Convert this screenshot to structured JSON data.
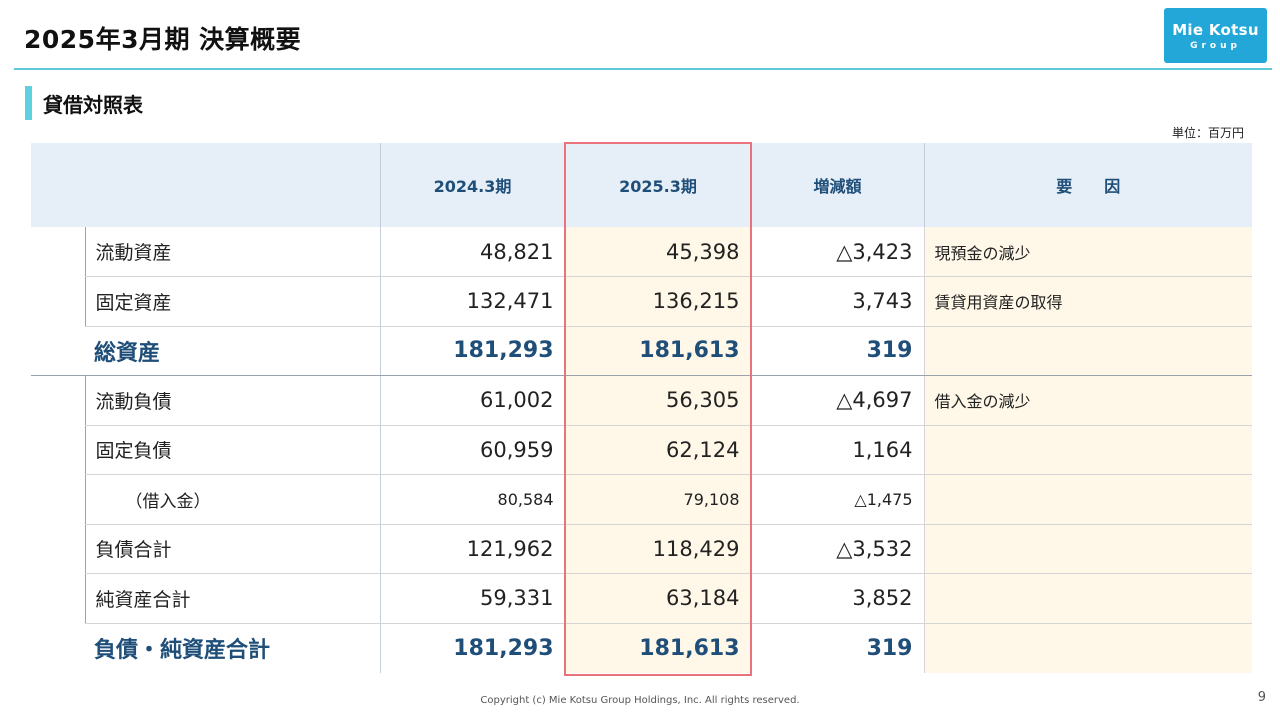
{
  "header": {
    "title": "2025年3月期 決算概要",
    "logo_main": "Mie Kotsu",
    "logo_sub": "Group"
  },
  "section": {
    "title": "貸借対照表",
    "unit_note": "単位：百万円"
  },
  "table": {
    "columns": [
      "",
      "2024.3期",
      "2025.3期",
      "増減額",
      "要　　因"
    ],
    "rows": [
      {
        "label": "流動資産",
        "prev": "48,821",
        "curr": "45,398",
        "change": "△3,423",
        "reason": "現預金の減少"
      },
      {
        "label": "固定資産",
        "prev": "132,471",
        "curr": "136,215",
        "change": "3,743",
        "reason": "賃貸用資産の取得"
      },
      {
        "label": "総資産",
        "prev": "181,293",
        "curr": "181,613",
        "change": "319",
        "reason": ""
      },
      {
        "label": "流動負債",
        "prev": "61,002",
        "curr": "56,305",
        "change": "△4,697",
        "reason": "借入金の減少"
      },
      {
        "label": "固定負債",
        "prev": "60,959",
        "curr": "62,124",
        "change": "1,164",
        "reason": ""
      },
      {
        "label": "（借入金）",
        "prev": "80,584",
        "curr": "79,108",
        "change": "△1,475",
        "reason": ""
      },
      {
        "label": "負債合計",
        "prev": "121,962",
        "curr": "118,429",
        "change": "△3,532",
        "reason": ""
      },
      {
        "label": "純資産合計",
        "prev": "59,331",
        "curr": "63,184",
        "change": "3,852",
        "reason": ""
      },
      {
        "label": "負債・純資産合計",
        "prev": "181,293",
        "curr": "181,613",
        "change": "319",
        "reason": ""
      }
    ]
  },
  "footer": {
    "copyright": "Copyright (c) Mie Kotsu Group Holdings, Inc. All rights reserved.",
    "page_number": "9"
  },
  "colors": {
    "accent": "#5fc8d8",
    "logo": "#23a7d8",
    "header_fill": "#e6eef7",
    "highlight_fill": "#fff8e8",
    "highlight_frame": "#e8737d",
    "total_text": "#1f4e79"
  }
}
